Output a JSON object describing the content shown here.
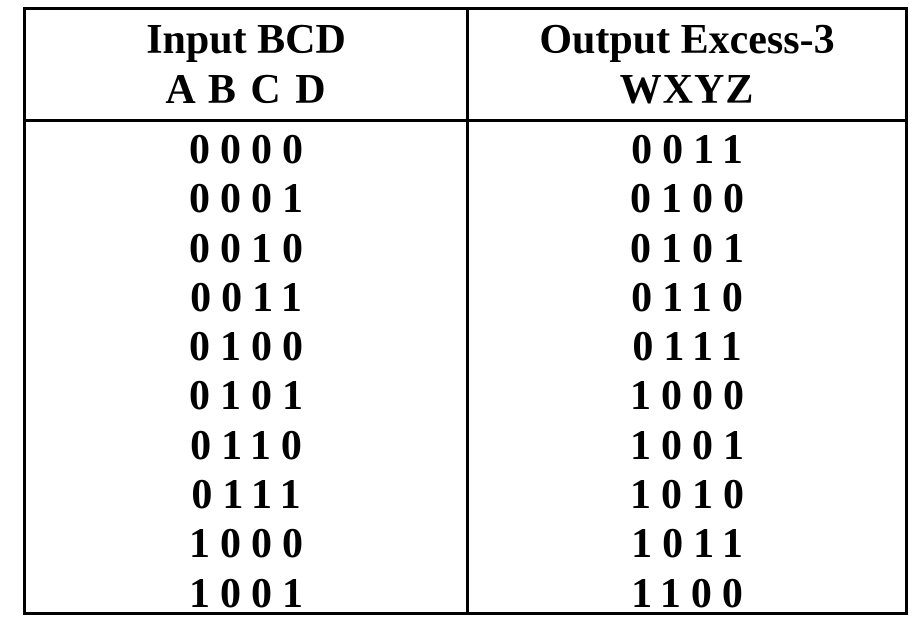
{
  "table": {
    "headers": {
      "input_title": "Input BCD",
      "input_bits": "A B C D",
      "output_title": "Output Excess-3",
      "output_bits": "WXYZ"
    },
    "rows": [
      {
        "input": "0000",
        "output": "0011"
      },
      {
        "input": "0001",
        "output": "0100"
      },
      {
        "input": "0010",
        "output": "0101"
      },
      {
        "input": "0011",
        "output": "0110"
      },
      {
        "input": "0100",
        "output": "0111"
      },
      {
        "input": "0101",
        "output": "1000"
      },
      {
        "input": "0110",
        "output": "1001"
      },
      {
        "input": "0111",
        "output": "1010"
      },
      {
        "input": "1000",
        "output": "1011"
      },
      {
        "input": "1001",
        "output": "1100"
      }
    ]
  }
}
